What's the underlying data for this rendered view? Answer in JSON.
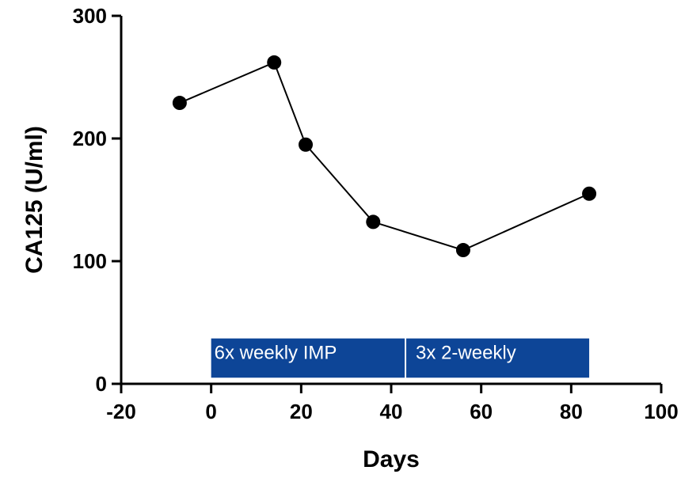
{
  "chart_data": {
    "type": "line",
    "xlabel": "Days",
    "ylabel": "CA125 (U/ml)",
    "xlim": [
      -20,
      100
    ],
    "ylim": [
      0,
      300
    ],
    "x_ticks": [
      -20,
      0,
      20,
      40,
      60,
      80,
      100
    ],
    "y_ticks": [
      0,
      100,
      200,
      300
    ],
    "grid": false,
    "series": [
      {
        "x": [
          -7,
          14,
          21,
          36,
          56,
          84
        ],
        "y": [
          229,
          262,
          195,
          132,
          109,
          155
        ],
        "color": "#000000",
        "marker": "circle"
      }
    ],
    "annotations": [
      {
        "label": "6x weekly IMP",
        "x_start": 0,
        "x_end": 43,
        "y_start": 5,
        "y_end": 37,
        "color": "#0d4597"
      },
      {
        "label": "3x 2-weekly",
        "x_start": 43,
        "x_end": 84,
        "y_start": 5,
        "y_end": 37,
        "color": "#0d4597"
      }
    ]
  }
}
